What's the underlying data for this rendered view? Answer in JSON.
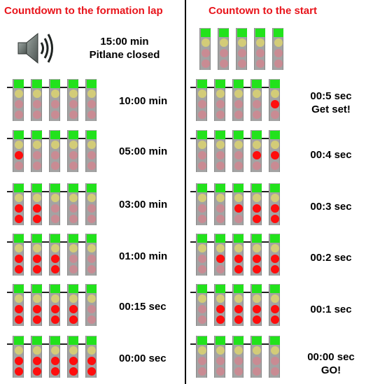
{
  "left": {
    "title": "Countdown to the formation lap",
    "intro": {
      "icon": "speaker-icon",
      "line1": "15:00 min",
      "line2": "Pitlane closed"
    },
    "steps": [
      {
        "label": "10:00 min",
        "lit": [
          0,
          0,
          0,
          0,
          0
        ]
      },
      {
        "label": "05:00 min",
        "lit": [
          1,
          0,
          0,
          0,
          0
        ]
      },
      {
        "label": "03:00 min",
        "lit": [
          2,
          2,
          0,
          0,
          0
        ]
      },
      {
        "label": "01:00 min",
        "lit": [
          2,
          2,
          2,
          0,
          0
        ]
      },
      {
        "label": "00:15 sec",
        "lit": [
          2,
          2,
          2,
          2,
          0
        ]
      },
      {
        "label": "00:00 sec",
        "lit": [
          2,
          2,
          2,
          2,
          2
        ]
      }
    ]
  },
  "right": {
    "title": "Countown to the start",
    "top_unit": {
      "lit": [
        0,
        0,
        0,
        0,
        0
      ]
    },
    "steps": [
      {
        "line1": "00:5 sec",
        "line2": "Get set!",
        "lit": [
          0,
          0,
          0,
          0,
          1
        ]
      },
      {
        "line1": "00:4 sec",
        "line2": "",
        "lit": [
          0,
          0,
          0,
          1,
          1
        ]
      },
      {
        "line1": "00:3 sec",
        "line2": "",
        "lit": [
          0,
          0,
          1,
          2,
          2
        ]
      },
      {
        "line1": "00:2 sec",
        "line2": "",
        "lit": [
          0,
          1,
          2,
          2,
          2
        ]
      },
      {
        "line1": "00:1 sec",
        "line2": "",
        "lit": [
          0,
          2,
          2,
          2,
          2
        ]
      },
      {
        "line1": "00:00 sec",
        "line2": "GO!",
        "lit": [
          0,
          0,
          0,
          0,
          0
        ]
      }
    ]
  },
  "colors": {
    "title": "#e8141b",
    "green": "#22e21c",
    "amber": "#d3cc78",
    "red_on": "#ff0d0d",
    "red_off": "#c98b93",
    "housing": "#a3a3a3"
  }
}
